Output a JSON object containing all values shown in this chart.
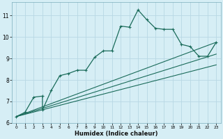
{
  "xlabel": "Humidex (Indice chaleur)",
  "bg_color": "#d6eef5",
  "grid_color": "#b8d8e4",
  "line_color": "#1a6b5a",
  "xlim": [
    -0.5,
    23.5
  ],
  "ylim": [
    6.0,
    11.6
  ],
  "xticks": [
    0,
    1,
    2,
    3,
    4,
    5,
    6,
    7,
    8,
    9,
    10,
    11,
    12,
    13,
    14,
    15,
    16,
    17,
    18,
    19,
    20,
    21,
    22,
    23
  ],
  "yticks": [
    6,
    7,
    8,
    9,
    10,
    11
  ],
  "curve_x": [
    0,
    1,
    2,
    3,
    3,
    4,
    5,
    6,
    7,
    8,
    9,
    10,
    11,
    12,
    13,
    14,
    15,
    16,
    17,
    18,
    19,
    20,
    21,
    22,
    23
  ],
  "curve_y": [
    6.3,
    6.5,
    7.2,
    7.25,
    6.6,
    7.5,
    8.2,
    8.3,
    8.45,
    8.45,
    9.05,
    9.35,
    9.35,
    10.5,
    10.45,
    11.25,
    10.8,
    10.4,
    10.35,
    10.35,
    9.65,
    9.55,
    9.1,
    9.1,
    9.75
  ],
  "line1_x": [
    0,
    23
  ],
  "line1_y": [
    6.3,
    9.75
  ],
  "line2_x": [
    0,
    23
  ],
  "line2_y": [
    6.3,
    8.7
  ],
  "line3_x": [
    0,
    23
  ],
  "line3_y": [
    6.3,
    9.2
  ]
}
